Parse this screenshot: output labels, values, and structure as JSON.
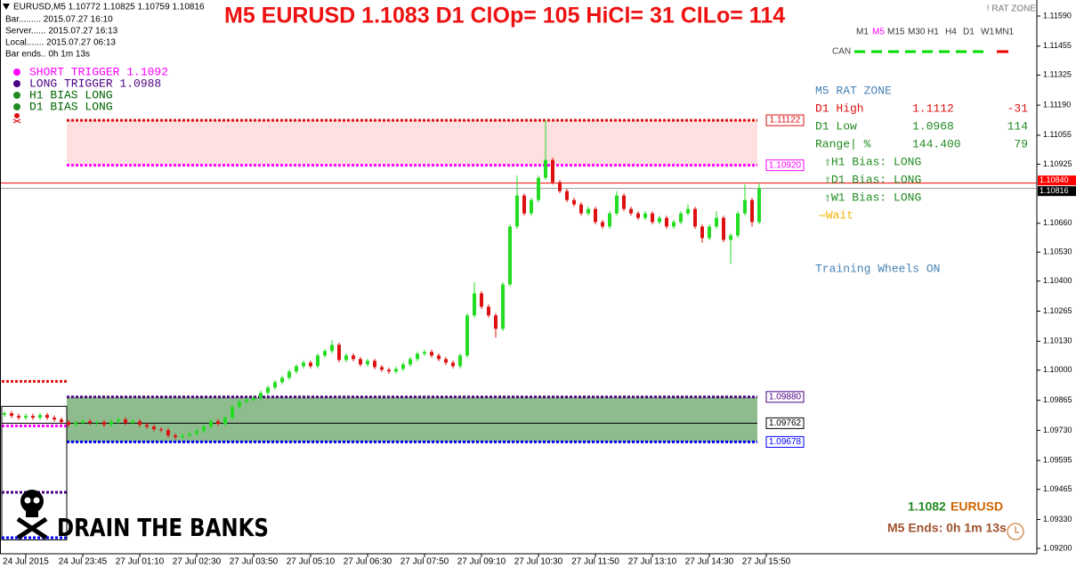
{
  "chart_data": {
    "type": "candlestick",
    "title": "M5 EURUSD 1.1083 D1 ClOp= 105 HiCl= 31 ClLo= 114",
    "categories": [
      null,
      null,
      null,
      "24 Jul 2015",
      null,
      null,
      null,
      null,
      null,
      null,
      null,
      "24 Jul 23:45",
      null,
      null,
      null,
      null,
      null,
      null,
      null,
      "27 Jul 01:10",
      null,
      null,
      null,
      null,
      null,
      null,
      null,
      "27 Jul 02:30",
      null,
      null,
      null,
      null,
      null,
      null,
      null,
      "27 Jul 03:50",
      null,
      null,
      null,
      null,
      null,
      null,
      null,
      "27 Jul 05:10",
      null,
      null,
      null,
      null,
      null,
      null,
      null,
      "27 Jul 06:30",
      null,
      null,
      null,
      null,
      null,
      null,
      null,
      "27 Jul 07:50",
      null,
      null,
      null,
      null,
      null,
      null,
      null,
      "27 Jul 09:10",
      null,
      null,
      null,
      null,
      null,
      null,
      null,
      "27 Jul 10:30",
      null,
      null,
      null,
      null,
      null,
      null,
      null,
      "27 Jul 11:50",
      null,
      null,
      null,
      null,
      null,
      null,
      null,
      "27 Jul 13:10",
      null,
      null,
      null,
      null,
      null,
      null,
      null,
      "27 Jul 14:30",
      null,
      null,
      null,
      null,
      null,
      null,
      null,
      "27 Jul 15:50"
    ],
    "open": [
      1.098,
      1.09807,
      1.09795,
      1.09787,
      1.09795,
      1.09787,
      1.09799,
      1.09787,
      1.09779,
      1.09767,
      1.09755,
      1.09763,
      1.09771,
      1.09763,
      1.09767,
      1.09755,
      1.09771,
      1.09779,
      1.09763,
      1.09771,
      1.09755,
      1.09747,
      1.09735,
      1.09731,
      1.09707,
      1.09699,
      1.09707,
      1.09715,
      1.09727,
      1.09747,
      1.09771,
      1.09759,
      1.09787,
      1.09835,
      1.09859,
      1.09867,
      1.09875,
      1.09898,
      1.09922,
      1.09946,
      1.09966,
      1.09994,
      1.10018,
      1.10034,
      1.10018,
      1.10066,
      1.10086,
      1.10114,
      1.10046,
      1.10066,
      1.1005,
      1.10026,
      1.10042,
      1.10014,
      1.10002,
      1.09994,
      1.10006,
      1.10026,
      1.1005,
      1.10074,
      1.10082,
      1.10066,
      1.1005,
      1.10034,
      1.10018,
      1.10066,
      1.10246,
      1.10345,
      1.10285,
      1.10246,
      1.10186,
      1.10385,
      1.10645,
      1.10784,
      1.10704,
      1.10764,
      1.10864,
      1.10944,
      1.10844,
      1.10804,
      1.10764,
      1.10744,
      1.10704,
      1.10724,
      1.10665,
      1.10645,
      1.10704,
      1.10784,
      1.10724,
      1.10704,
      1.10684,
      1.10704,
      1.10665,
      1.10684,
      1.10645,
      1.10665,
      1.10704,
      1.10724,
      1.10645,
      1.10593,
      1.10645,
      1.10684,
      1.10585,
      1.10605,
      1.10704,
      1.10764,
      1.10665,
      null
    ],
    "high": [
      1.09817,
      1.09817,
      1.09805,
      1.09805,
      1.09805,
      1.09809,
      1.09809,
      1.09797,
      1.09789,
      1.09777,
      1.09773,
      1.09781,
      1.09781,
      1.09777,
      1.09777,
      1.09781,
      1.09789,
      1.09789,
      1.09781,
      1.09781,
      1.09765,
      1.09757,
      1.09745,
      1.09741,
      1.09717,
      1.09717,
      1.09725,
      1.09737,
      1.09757,
      1.09781,
      1.09781,
      1.09797,
      1.09845,
      1.09869,
      1.09877,
      1.09885,
      1.09908,
      1.09932,
      1.09956,
      1.09976,
      1.10004,
      1.10028,
      1.10044,
      1.10044,
      1.10076,
      1.10096,
      1.10134,
      1.10124,
      1.10076,
      1.10076,
      1.1006,
      1.10052,
      1.10052,
      1.10024,
      1.10012,
      1.10016,
      1.10036,
      1.1006,
      1.10084,
      1.10092,
      1.10092,
      1.10076,
      1.1006,
      1.10044,
      1.10076,
      1.10256,
      1.10395,
      1.10355,
      1.10295,
      1.10256,
      1.10395,
      1.10655,
      1.10874,
      1.10794,
      1.10774,
      1.10874,
      1.11122,
      1.10954,
      1.10854,
      1.10814,
      1.10774,
      1.10754,
      1.10734,
      1.10734,
      1.10675,
      1.10714,
      1.10804,
      1.10794,
      1.10734,
      1.10714,
      1.10714,
      1.10714,
      1.10694,
      1.10694,
      1.10675,
      1.10714,
      1.10744,
      1.10734,
      1.10655,
      1.10655,
      1.10714,
      1.10694,
      1.10615,
      1.10714,
      1.10834,
      1.10774,
      1.1084,
      null
    ],
    "low": [
      1.0979,
      1.09785,
      1.09777,
      1.09777,
      1.09777,
      1.09777,
      1.09777,
      1.09769,
      1.09757,
      1.09745,
      1.09745,
      1.09753,
      1.09753,
      1.09753,
      1.09745,
      1.09745,
      1.09761,
      1.09753,
      1.09753,
      1.09745,
      1.09737,
      1.09725,
      1.09721,
      1.09697,
      1.09689,
      1.09689,
      1.09697,
      1.09705,
      1.09717,
      1.09737,
      1.09749,
      1.09749,
      1.09777,
      1.09825,
      1.09849,
      1.09857,
      1.09865,
      1.09888,
      1.09912,
      1.09936,
      1.09956,
      1.09984,
      1.10008,
      1.10008,
      1.10008,
      1.10056,
      1.10076,
      1.10036,
      1.10036,
      1.1004,
      1.10016,
      1.10016,
      1.10004,
      1.09992,
      1.09984,
      1.09984,
      1.09996,
      1.10016,
      1.1004,
      1.10064,
      1.10056,
      1.1004,
      1.10024,
      1.10008,
      1.10008,
      1.10056,
      1.10236,
      1.10275,
      1.10236,
      1.10146,
      1.10176,
      1.10375,
      1.10635,
      1.10694,
      1.10694,
      1.10754,
      1.10854,
      1.10834,
      1.10794,
      1.10754,
      1.10734,
      1.10694,
      1.10694,
      1.10655,
      1.10635,
      1.10635,
      1.10694,
      1.10714,
      1.10694,
      1.10674,
      1.10674,
      1.10655,
      1.10655,
      1.10635,
      1.10635,
      1.10655,
      1.10694,
      1.10635,
      1.10573,
      1.10583,
      1.10635,
      1.10575,
      1.10477,
      1.10595,
      1.10694,
      1.10645,
      1.10655,
      null
    ],
    "close": [
      1.09807,
      1.09795,
      1.09787,
      1.09795,
      1.09787,
      1.09799,
      1.09787,
      1.09779,
      1.09767,
      1.09755,
      1.09763,
      1.09771,
      1.09763,
      1.09767,
      1.09755,
      1.09771,
      1.09779,
      1.09763,
      1.09771,
      1.09755,
      1.09747,
      1.09735,
      1.09731,
      1.09707,
      1.09699,
      1.09707,
      1.09715,
      1.09727,
      1.09747,
      1.09771,
      1.09759,
      1.09787,
      1.09835,
      1.09859,
      1.09867,
      1.09875,
      1.09898,
      1.09922,
      1.09946,
      1.09966,
      1.09994,
      1.10018,
      1.10034,
      1.10018,
      1.10066,
      1.10086,
      1.10114,
      1.10046,
      1.10066,
      1.1005,
      1.10026,
      1.10042,
      1.10014,
      1.10002,
      1.09994,
      1.10006,
      1.10026,
      1.1005,
      1.10074,
      1.10082,
      1.10066,
      1.1005,
      1.10034,
      1.10018,
      1.10066,
      1.10246,
      1.10345,
      1.10285,
      1.10246,
      1.10186,
      1.10385,
      1.10645,
      1.10784,
      1.10704,
      1.10764,
      1.10864,
      1.10944,
      1.10844,
      1.10804,
      1.10764,
      1.10744,
      1.10704,
      1.10724,
      1.10665,
      1.10645,
      1.10704,
      1.10784,
      1.10724,
      1.10704,
      1.10684,
      1.10704,
      1.10665,
      1.10684,
      1.10645,
      1.10665,
      1.10704,
      1.10724,
      1.10645,
      1.10593,
      1.10645,
      1.10684,
      1.10585,
      1.10605,
      1.10704,
      1.10764,
      1.10665,
      1.10816,
      null
    ],
    "up_color": "#22dd22",
    "down_color": "#dd1111",
    "ylim": [
      1.09144,
      1.11662
    ],
    "yticks": [
      {
        "value": 1.1159,
        "label": "1.11590"
      },
      {
        "value": 1.11455,
        "label": "1.11455"
      },
      {
        "value": 1.11325,
        "label": "1.11325"
      },
      {
        "value": 1.1119,
        "label": "1.11190"
      },
      {
        "value": 1.11055,
        "label": "1.11055"
      },
      {
        "value": 1.10925,
        "label": "1.10925"
      },
      {
        "value": 1.1066,
        "label": "1.10660"
      },
      {
        "value": 1.1053,
        "label": "1.10530"
      },
      {
        "value": 1.104,
        "label": "1.10400"
      },
      {
        "value": 1.10265,
        "label": "1.10265"
      },
      {
        "value": 1.1013,
        "label": "1.10130"
      },
      {
        "value": 1.1,
        "label": "1.10000"
      },
      {
        "value": 1.09865,
        "label": "1.09865"
      },
      {
        "value": 1.0973,
        "label": "1.09730"
      },
      {
        "value": 1.09595,
        "label": "1.09595"
      },
      {
        "value": 1.09465,
        "label": "1.09465"
      },
      {
        "value": 1.0933,
        "label": "1.09330"
      },
      {
        "value": 1.092,
        "label": "1.09200"
      }
    ],
    "grid": false,
    "bands": [
      {
        "values": [
          1.11122,
          1.1092
        ],
        "value_labels": [
          "1.11122",
          "1.10920"
        ],
        "colors": [
          "#dd1111",
          "#ff00ff"
        ],
        "fill": "#ffe0e0"
      },
      {
        "values": [
          1.0988,
          1.09678
        ],
        "value_labels": [
          "1.09880",
          "1.09678"
        ],
        "colors": [
          "#4b0082",
          "#0000ff"
        ],
        "fill": "#8fbc8f"
      }
    ],
    "lines": [
      {
        "value": 1.09762,
        "value_label": "1.09762",
        "color": "#000000"
      },
      {
        "value": 1.1084,
        "value_label": "1.10840",
        "color": "#ff0000"
      },
      {
        "value": 1.10816,
        "value_label": "1.10816",
        "color": "#9a9a9a"
      }
    ],
    "prior_levels": {
      "values": [
        1.0995,
        1.0975,
        1.09452,
        1.09248
      ],
      "colors": [
        "#dd1111",
        "#ff00ff",
        "#4b0082",
        "#0000ff"
      ]
    }
  },
  "info": [
    "EURUSD,M5  1.10772 1.10825 1.10759 1.10816",
    "Bar......... 2015.07.27 16:10",
    "Server...... 2015.07.27 16:13",
    "Local....... 2015.07.27 06:13",
    "Bar ends.. 0h 1m 13s"
  ],
  "legend": [
    "SHORT TRIGGER 1.1092",
    "LONG TRIGGER  1.0988",
    "H1 BIAS LONG",
    "D1 BIAS LONG"
  ],
  "rat_zone": "! RAT ZONE",
  "timeframes": [
    "M1",
    "M5",
    "M15",
    "M30",
    "H1",
    "H4",
    "D1",
    "W1",
    "MN1"
  ],
  "can": "CAN",
  "panel": {
    "title": "M5 RAT ZONE",
    "rows": [
      [
        "D1 High",
        "1.1112",
        "-31"
      ],
      [
        "D1 Low",
        "1.0968",
        "114"
      ],
      [
        "Range| %",
        "144.400",
        "79"
      ]
    ],
    "bias": [
      "⇧H1 Bias: LONG",
      "⇧D1 Bias: LONG",
      "⇧W1 Bias: LONG"
    ],
    "status": "⇨Wait",
    "training": "Training Wheels ON"
  },
  "footer": {
    "price": "1.1082",
    "symbol": "EURUSD",
    "ends": "M5 Ends: 0h 1m 13s",
    "brand": "DRAIN THE BANKS"
  }
}
